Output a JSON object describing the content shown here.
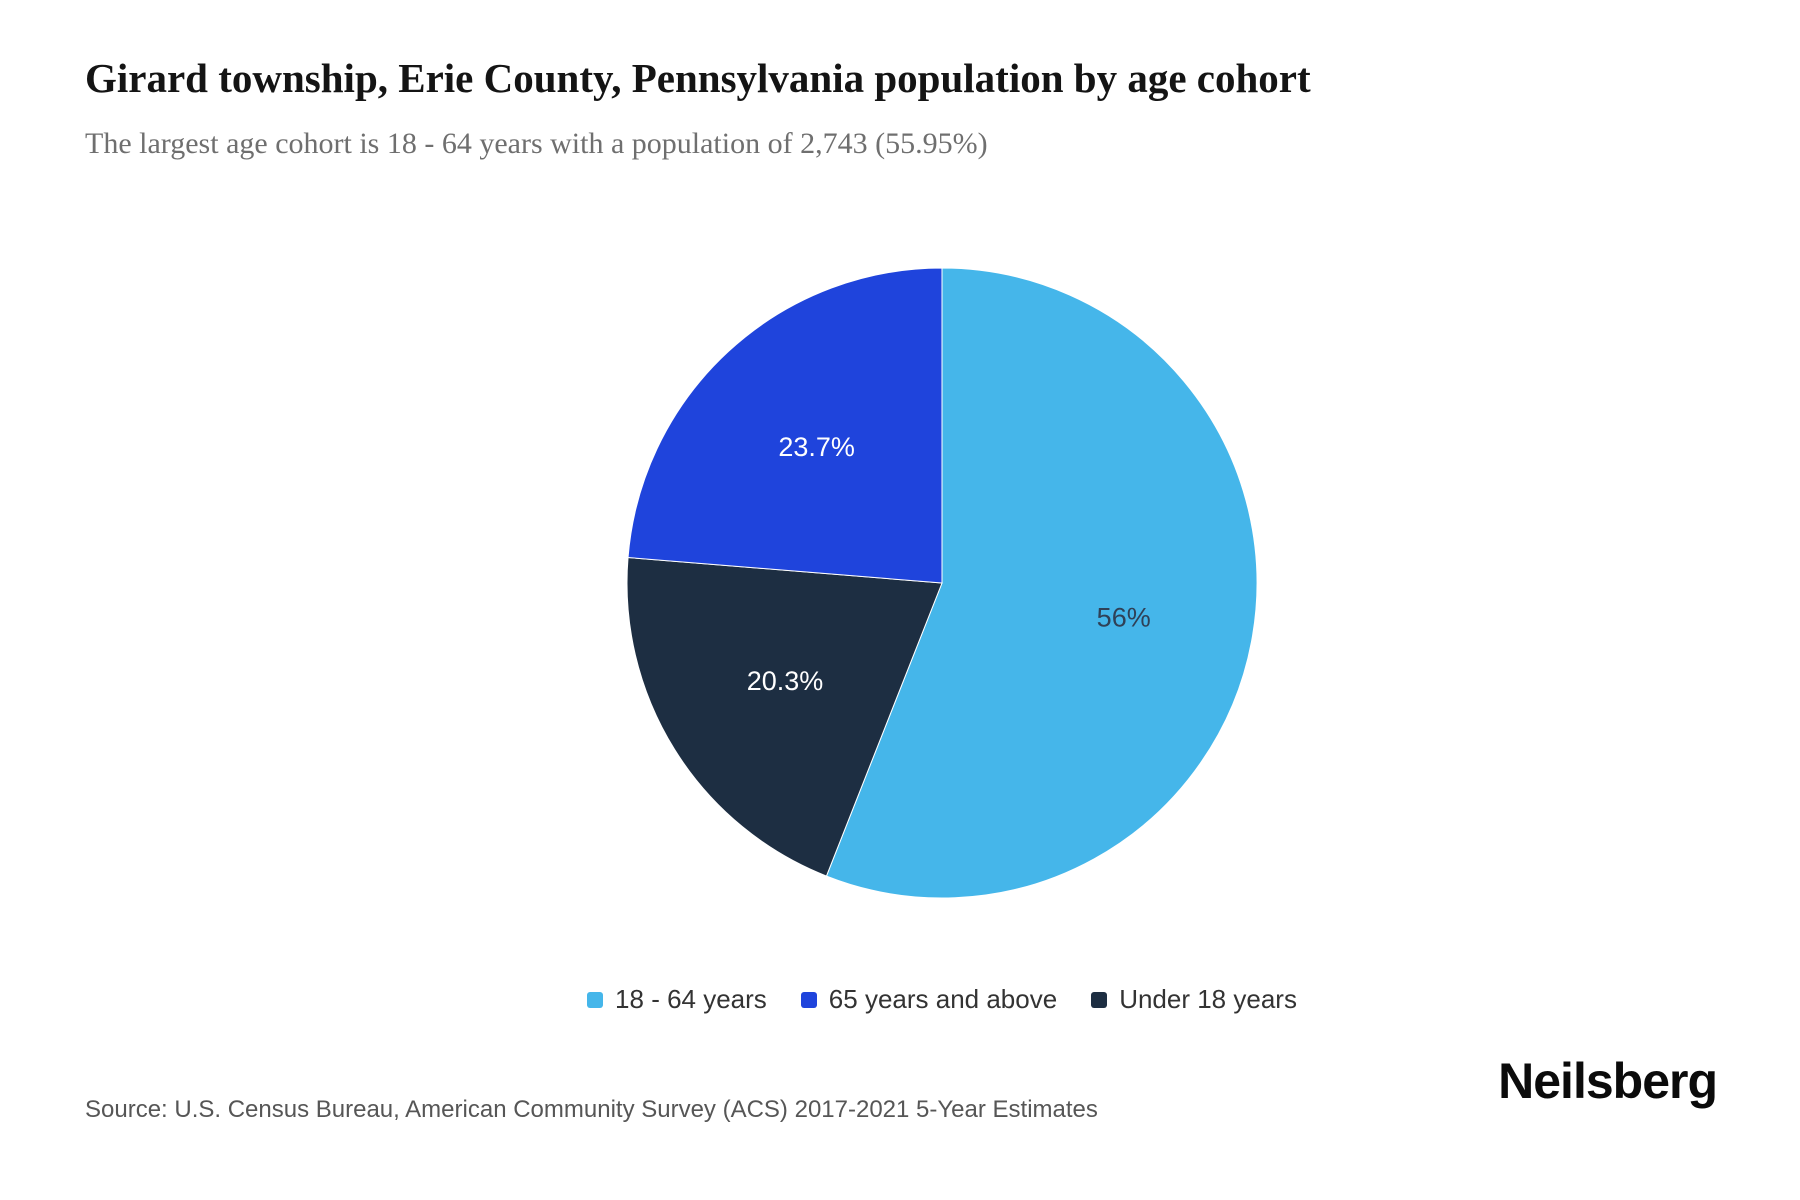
{
  "header": {
    "title": "Girard township, Erie County, Pennsylvania population by age cohort",
    "subtitle": "The largest age cohort is 18 - 64 years with a population of 2,743 (55.95%)"
  },
  "chart_data": {
    "type": "pie",
    "title": "Girard township, Erie County, Pennsylvania population by age cohort",
    "unit": "percent of total population",
    "largest_cohort": {
      "label": "18 - 64 years",
      "population": "2,743",
      "share_pct": 55.95
    },
    "start_angle_deg": 0,
    "direction": "clockwise",
    "slices": [
      {
        "label": "18 - 64 years",
        "value": 55.95,
        "display_label": "56%",
        "color": "#45B6EA",
        "text_color": "#2F4157"
      },
      {
        "label": "Under 18 years",
        "value": 20.3,
        "display_label": "20.3%",
        "color": "#1D2E42",
        "text_color": "#FFFFFF"
      },
      {
        "label": "65 years and above",
        "value": 23.7,
        "display_label": "23.7%",
        "color": "#1F44DC",
        "text_color": "#FFFFFF"
      }
    ],
    "legend_position": "bottom",
    "legend": [
      {
        "label": "18 - 64 years",
        "color": "#45B6EA"
      },
      {
        "label": "65 years and above",
        "color": "#1F44DC"
      },
      {
        "label": "Under 18 years",
        "color": "#1D2E42"
      }
    ]
  },
  "footer": {
    "source": "Source: U.S. Census Bureau, American Community Survey (ACS) 2017-2021 5-Year Estimates",
    "logo": "Neilsberg"
  }
}
